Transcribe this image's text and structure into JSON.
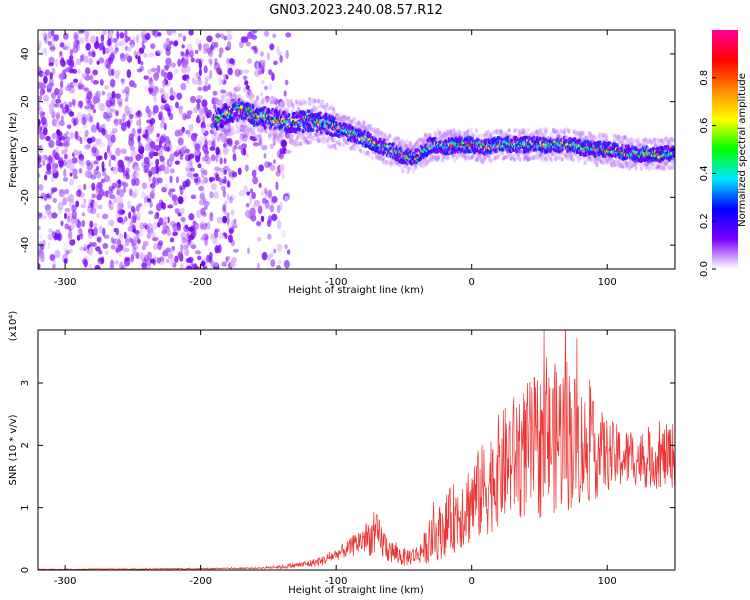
{
  "title": "GN03.2023.240.08.57.R12",
  "chart_data": [
    {
      "type": "heatmap",
      "xlabel": "Height of straight line (km)",
      "ylabel": "Frequency (Hz)",
      "xlim": [
        -320,
        150
      ],
      "ylim": [
        -50,
        50
      ],
      "x_ticks": [
        -300,
        -200,
        -100,
        0,
        100
      ],
      "y_ticks": [
        -40,
        -20,
        0,
        20,
        40
      ],
      "colorbar": {
        "label": "Normalized spectral amplitude",
        "range": [
          0,
          1
        ],
        "ticks": [
          "0.0",
          "0.2",
          "0.4",
          "0.6",
          "0.8"
        ],
        "colors": [
          "#ffffff",
          "#7b00ff",
          "#0000ff",
          "#00e5ff",
          "#00ff00",
          "#ffff00",
          "#ff8800",
          "#ff0000",
          "#ff0099"
        ]
      },
      "noise_region_x": [
        -320,
        -150
      ],
      "signal_ridge": {
        "x": [
          -190,
          -180,
          -170,
          -160,
          -150,
          -140,
          -130,
          -120,
          -110,
          -100,
          -90,
          -80,
          -70,
          -60,
          -50,
          -40,
          -30,
          -20,
          -10,
          0,
          10,
          20,
          30,
          40,
          50,
          60,
          70,
          80,
          90,
          100,
          110,
          120,
          130,
          140,
          150
        ],
        "frequency": [
          12,
          15,
          17,
          14,
          13,
          12,
          11,
          12,
          11,
          9,
          7,
          5,
          2,
          0,
          -3,
          -3,
          2,
          1,
          2,
          2,
          1,
          2,
          2,
          2,
          2,
          2,
          2,
          1,
          0,
          0,
          -1,
          -2,
          -2,
          -2,
          -1
        ]
      }
    },
    {
      "type": "line",
      "xlabel": "Height of straight line (km)",
      "ylabel": "SNR (10 * v/v)",
      "y_multiplier": "(x10⁴)",
      "xlim": [
        -320,
        150
      ],
      "ylim": [
        0,
        3.85
      ],
      "x_ticks": [
        -300,
        -200,
        -100,
        0,
        100
      ],
      "y_ticks": [
        0,
        1,
        2,
        3
      ],
      "color": "#ee3333",
      "series": [
        {
          "x": [
            -320,
            -200,
            -160,
            -140,
            -120,
            -110,
            -100,
            -90,
            -80,
            -70,
            -60,
            -50,
            -40,
            -30,
            -20,
            -10,
            0,
            10,
            20,
            30,
            40,
            50,
            60,
            70,
            80,
            90,
            100,
            110,
            120,
            130,
            140,
            150
          ],
          "values": [
            0.01,
            0.02,
            0.03,
            0.05,
            0.1,
            0.15,
            0.25,
            0.35,
            0.5,
            0.55,
            0.3,
            0.2,
            0.25,
            0.45,
            0.7,
            0.9,
            1.1,
            1.3,
            1.6,
            1.8,
            1.9,
            2.0,
            2.1,
            2.2,
            2.0,
            1.9,
            1.85,
            1.8,
            1.8,
            1.75,
            1.8,
            1.85
          ],
          "spread": [
            0.005,
            0.01,
            0.01,
            0.03,
            0.06,
            0.08,
            0.1,
            0.15,
            0.25,
            0.35,
            0.2,
            0.15,
            0.15,
            0.35,
            0.5,
            0.6,
            0.7,
            0.8,
            0.9,
            1.0,
            1.1,
            1.2,
            1.2,
            1.3,
            1.0,
            0.8,
            0.6,
            0.5,
            0.45,
            0.45,
            0.5,
            0.55
          ]
        }
      ]
    }
  ]
}
